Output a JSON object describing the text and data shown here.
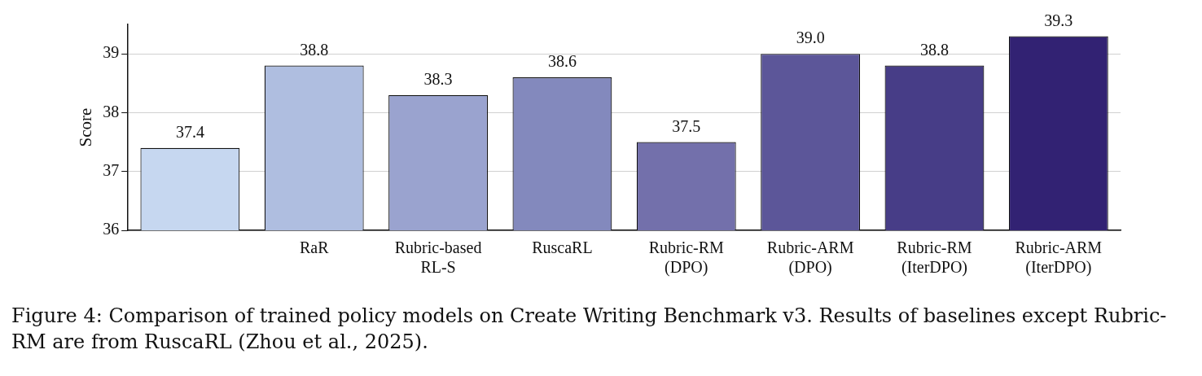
{
  "chart_data": {
    "type": "bar",
    "ylabel": "Score",
    "categories": [
      null,
      "RaR",
      "Rubric-based\nRL-S",
      "RuscaRL",
      "Rubric-RM\n(DPO)",
      "Rubric-ARM\n(DPO)",
      "Rubric-RM\n(IterDPO)",
      "Rubric-ARM\n(IterDPO)"
    ],
    "values": [
      37.4,
      38.8,
      38.3,
      38.6,
      37.5,
      39.0,
      38.8,
      39.3
    ],
    "value_labels": [
      "37.4",
      "38.8",
      "38.3",
      "38.6",
      "37.5",
      "39.0",
      "38.8",
      "39.3"
    ],
    "colors": [
      "#c6d7f0",
      "#afbee0",
      "#9aa3cf",
      "#8389bd",
      "#7370ab",
      "#5c5699",
      "#473d87",
      "#322273"
    ],
    "ylim": [
      36,
      39.5
    ],
    "yticks": [
      36,
      37,
      38,
      39
    ],
    "grid": "y",
    "annotations": [
      "Figure 4: Comparison of trained policy models on Create Writing Benchmark v3. Results of baselines except Rubric-RM are from RuscaRL (Zhou et al., 2025)."
    ]
  }
}
